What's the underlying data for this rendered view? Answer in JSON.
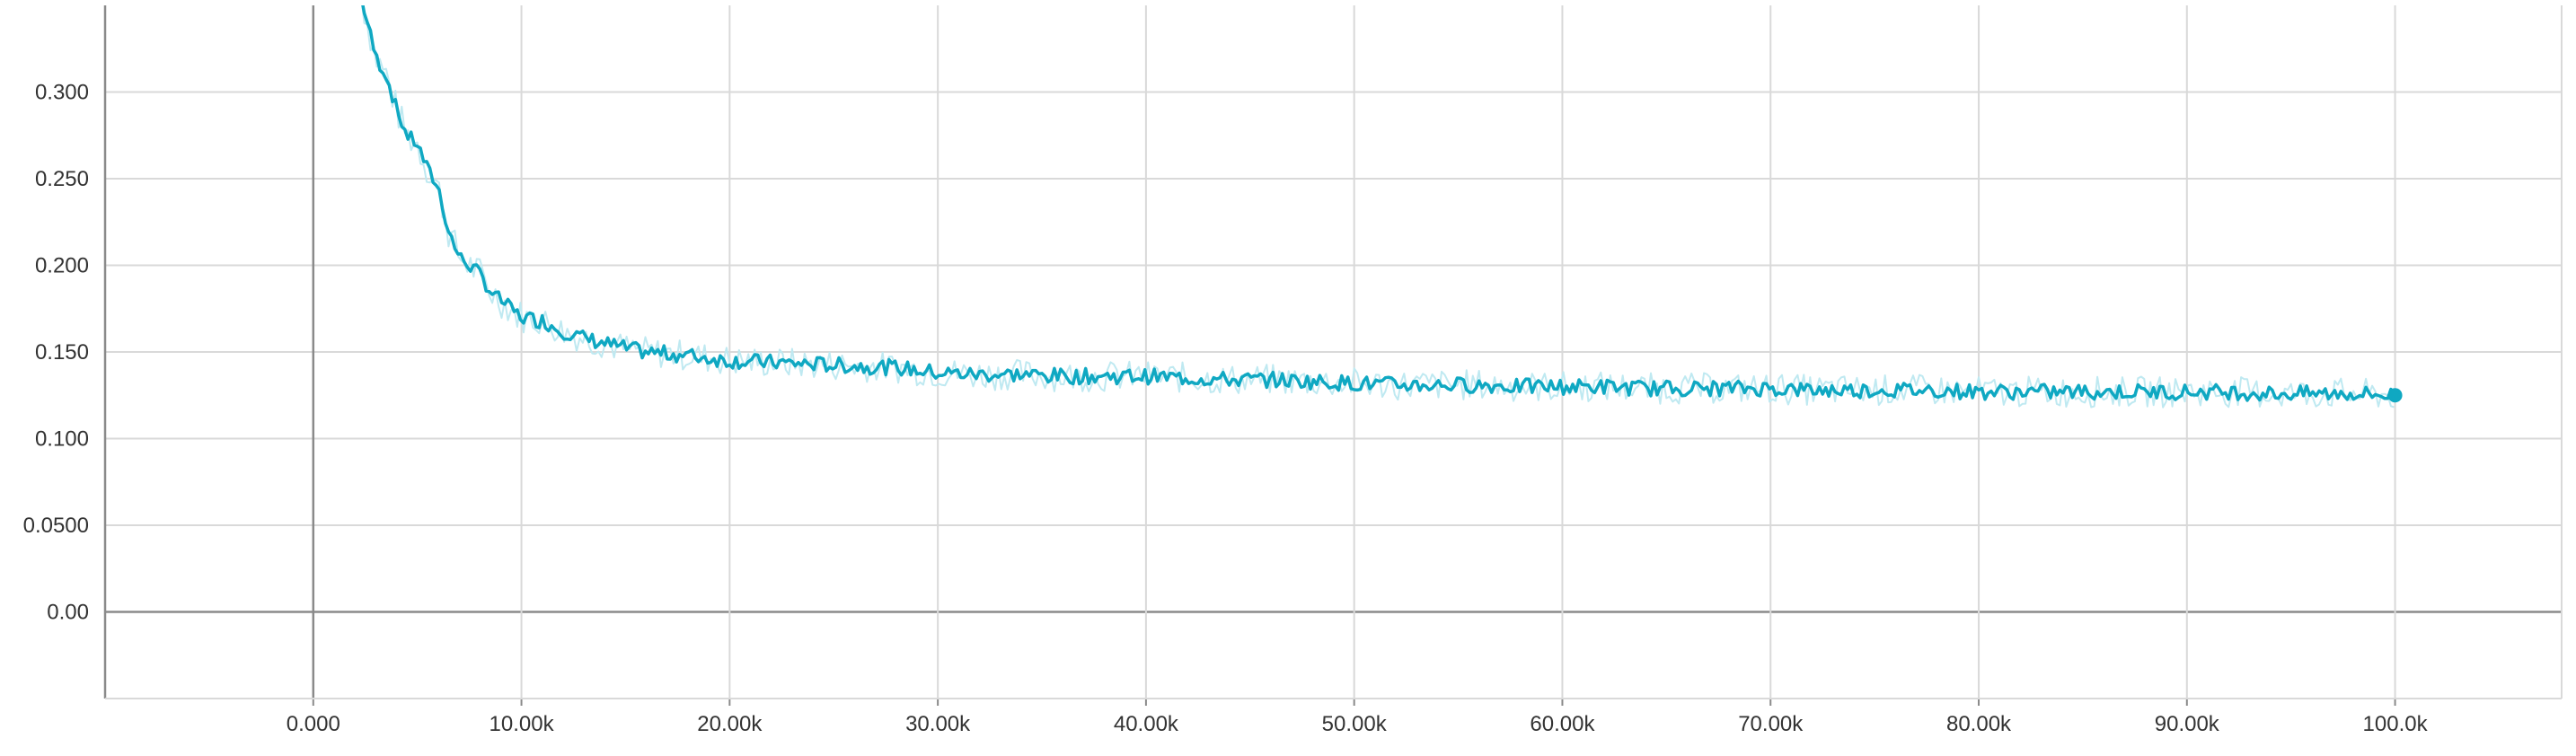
{
  "colors": {
    "series": "#0fa8c2",
    "series_raw": "#bfe9f1",
    "grid": "#d9d9d9",
    "axis": "#8a8a8a",
    "text": "#333333"
  },
  "chart_data": {
    "type": "line",
    "title": "",
    "xlabel": "",
    "ylabel": "",
    "xlim": [
      -10000,
      108000
    ],
    "ylim": [
      -0.05,
      0.35
    ],
    "grid": true,
    "x_ticks": [
      0,
      10000,
      20000,
      30000,
      40000,
      50000,
      60000,
      70000,
      80000,
      90000,
      100000
    ],
    "x_tick_labels": [
      "0.000",
      "10.00k",
      "20.00k",
      "30.00k",
      "40.00k",
      "50.00k",
      "60.00k",
      "70.00k",
      "80.00k",
      "90.00k",
      "100.0k"
    ],
    "y_ticks": [
      0,
      0.05,
      0.1,
      0.15,
      0.2,
      0.25,
      0.3
    ],
    "y_tick_labels": [
      "0.00",
      "0.0500",
      "0.100",
      "0.150",
      "0.200",
      "0.250",
      "0.300"
    ],
    "series": [
      {
        "name": "",
        "smoothed": true,
        "x": [
          2300,
          3000,
          3500,
          4000,
          4500,
          5000,
          5500,
          6000,
          6500,
          7000,
          7500,
          8000,
          8500,
          9000,
          9500,
          10000,
          11000,
          12000,
          13000,
          14000,
          15000,
          16000,
          17000,
          18000,
          20000,
          22000,
          24000,
          26000,
          28000,
          30000,
          32000,
          34000,
          36000,
          38000,
          40000,
          42000,
          44000,
          46000,
          48000,
          50000,
          52000,
          54000,
          56000,
          58000,
          60000,
          62000,
          64000,
          66000,
          68000,
          70000,
          72000,
          74000,
          76000,
          78000,
          80000,
          82000,
          84000,
          86000,
          88000,
          90000,
          92000,
          94000,
          96000,
          98000,
          100000
        ],
        "y": [
          0.355,
          0.32,
          0.31,
          0.29,
          0.275,
          0.27,
          0.255,
          0.245,
          0.22,
          0.205,
          0.2,
          0.195,
          0.185,
          0.18,
          0.175,
          0.17,
          0.168,
          0.162,
          0.158,
          0.155,
          0.152,
          0.15,
          0.149,
          0.148,
          0.145,
          0.144,
          0.143,
          0.142,
          0.141,
          0.138,
          0.137,
          0.137,
          0.136,
          0.136,
          0.136,
          0.135,
          0.134,
          0.134,
          0.133,
          0.132,
          0.131,
          0.131,
          0.131,
          0.13,
          0.13,
          0.13,
          0.129,
          0.129,
          0.129,
          0.129,
          0.128,
          0.128,
          0.128,
          0.128,
          0.127,
          0.127,
          0.127,
          0.127,
          0.127,
          0.127,
          0.127,
          0.126,
          0.126,
          0.126,
          0.125
        ]
      }
    ]
  }
}
